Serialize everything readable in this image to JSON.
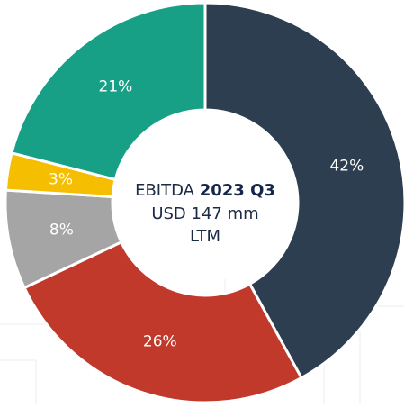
{
  "chart_data": {
    "type": "pie",
    "values": [
      42,
      26,
      8,
      3,
      21
    ],
    "value_labels": [
      "42%",
      "26%",
      "8%",
      "3%",
      "21%"
    ],
    "colors": [
      "#2e3e51",
      "#c0392b",
      "#a5a5a5",
      "#f5be00",
      "#17a086"
    ],
    "center_text": {
      "line1": [
        "EBITDA",
        "2023 Q3"
      ],
      "line2": "USD 147 mm",
      "line3": "LTM"
    }
  }
}
